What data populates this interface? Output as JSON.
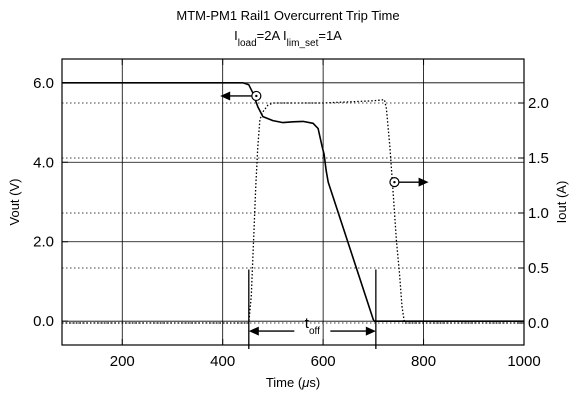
{
  "chart_data": {
    "type": "line",
    "title": "MTM-PM1 Rail1 Overcurrent Trip Time",
    "subtitle": {
      "parts": [
        {
          "text": "I",
          "sub": false
        },
        {
          "text": "load",
          "sub": true
        },
        {
          "text": "=2A I",
          "sub": false
        },
        {
          "text": "lim_set",
          "sub": true
        },
        {
          "text": "=1A",
          "sub": false
        }
      ]
    },
    "xlabel": {
      "prefix": "Time (",
      "mu": "μ",
      "suffix": "s)"
    },
    "ylabel_left": "Vout (V)",
    "ylabel_right": "Iout (A)",
    "xlim": [
      80,
      1000
    ],
    "ylim_left": [
      -0.6,
      6.6
    ],
    "ylim_right": [
      -0.2,
      2.4
    ],
    "x_ticks": [
      200,
      400,
      600,
      800,
      1000
    ],
    "x_tick_labels": [
      "200",
      "400",
      "600",
      "800",
      "1000"
    ],
    "y_left_ticks": [
      0,
      2,
      4,
      6
    ],
    "y_left_tick_labels": [
      "0.0",
      "2.0",
      "4.0",
      "6.0"
    ],
    "y_right_ticks": [
      0,
      0.5,
      1.0,
      1.5,
      2.0
    ],
    "y_right_tick_labels": [
      "0.0",
      "0.5",
      "1.0",
      "1.5",
      "2.0"
    ],
    "grid": true,
    "series": [
      {
        "axis": "left",
        "style": "solid",
        "x": [
          80,
          440,
          452,
          460,
          470,
          480,
          500,
          520,
          540,
          560,
          580,
          590,
          598,
          602,
          606,
          610,
          700,
          702,
          705,
          1000
        ],
        "y": [
          6.0,
          6.0,
          5.95,
          5.75,
          5.4,
          5.15,
          5.05,
          5.0,
          5.02,
          5.03,
          4.98,
          4.85,
          4.4,
          4.2,
          3.8,
          3.5,
          0.04,
          0.0,
          0.0,
          0.0
        ]
      },
      {
        "axis": "right",
        "style": "dotted",
        "x": [
          80,
          452,
          457,
          462,
          466,
          470,
          474,
          480,
          490,
          500,
          600,
          700,
          722,
          726,
          733,
          740,
          746,
          752,
          757,
          762,
          1000
        ],
        "y": [
          0.0,
          0.0,
          0.25,
          0.8,
          1.25,
          1.6,
          1.85,
          1.92,
          1.98,
          2.0,
          2.0,
          2.02,
          2.03,
          1.95,
          1.6,
          1.15,
          0.75,
          0.45,
          0.15,
          0.0,
          0.0
        ]
      }
    ],
    "annotations": [
      {
        "kind": "axis_marker",
        "x": 467,
        "y": 5.67,
        "axis": "left",
        "arrow": "left",
        "arrow_to_x": 395
      },
      {
        "kind": "axis_marker",
        "x": 742,
        "y": 3.5,
        "axis": "left",
        "arrow": "right",
        "arrow_to_x": 810
      },
      {
        "kind": "span",
        "x1": 452,
        "x2": 705,
        "y": -0.25,
        "axis": "left",
        "label": "t",
        "label_sub": "off",
        "tick_top_y": 1.3
      }
    ]
  }
}
